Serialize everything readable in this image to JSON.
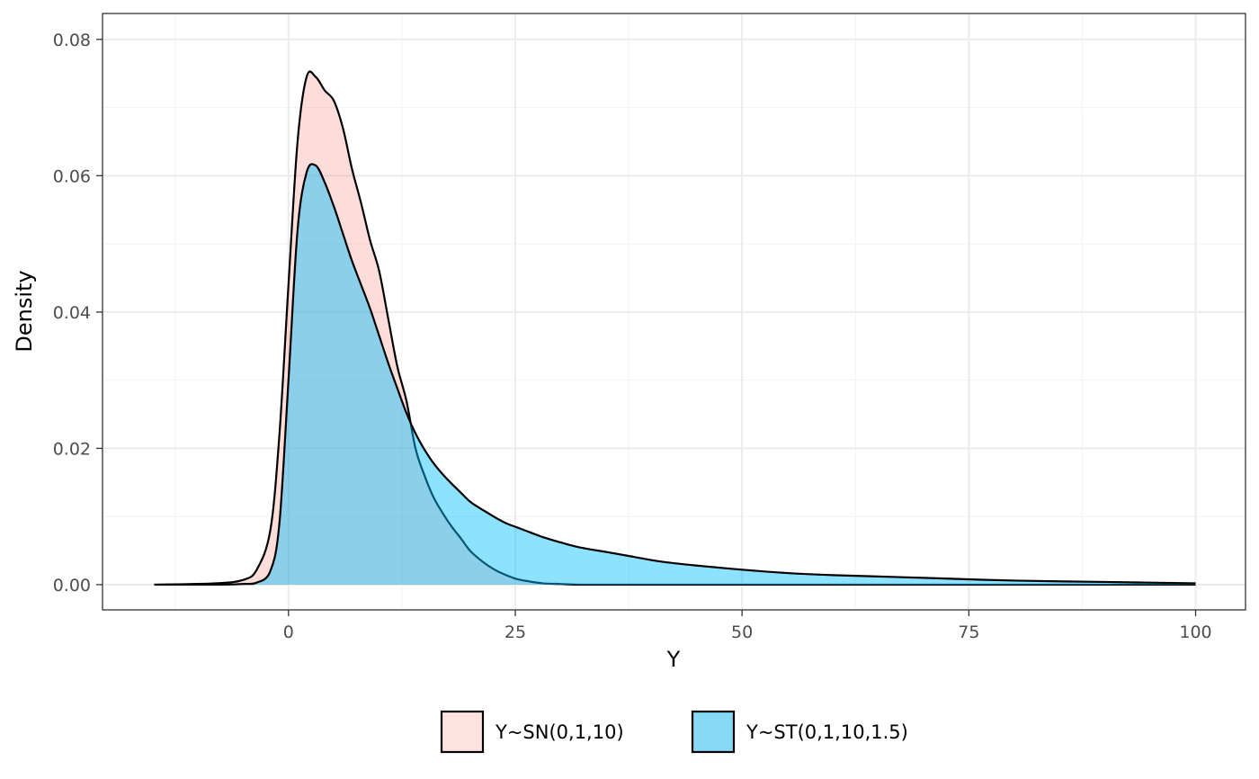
{
  "chart_data": {
    "type": "area",
    "xlabel": "Y",
    "ylabel": "Density",
    "xlim": [
      -20.5,
      105.5
    ],
    "ylim": [
      -0.0037,
      0.0838
    ],
    "xticks": [
      0,
      25,
      50,
      75,
      100
    ],
    "xtick_labels": [
      "0",
      "25",
      "50",
      "75",
      "100"
    ],
    "yticks": [
      0,
      0.02,
      0.04,
      0.06,
      0.08
    ],
    "ytick_labels": [
      "0.00",
      "0.02",
      "0.04",
      "0.06",
      "0.08"
    ],
    "grid": true,
    "legend_position": "bottom",
    "series": [
      {
        "name": "Y~SN(0,1,10)",
        "fill": "#F8766D",
        "legend_fill": "#FDE2E0",
        "opacity": 0.25,
        "x": [
          -14.8,
          -8,
          -5,
          -3.5,
          -2,
          -1,
          0,
          1,
          2,
          3,
          4,
          5,
          6,
          7,
          8,
          9,
          10,
          11,
          12,
          13,
          14,
          15,
          16,
          17,
          18,
          19,
          20,
          21,
          22,
          23,
          24,
          25,
          26,
          28,
          30,
          32,
          35,
          38,
          41,
          45,
          50,
          55,
          60,
          65,
          70,
          80,
          90,
          100
        ],
        "y": [
          0,
          0.0002,
          0.0007,
          0.0022,
          0.008,
          0.022,
          0.044,
          0.065,
          0.0745,
          0.0745,
          0.0725,
          0.071,
          0.067,
          0.061,
          0.056,
          0.0505,
          0.046,
          0.039,
          0.032,
          0.027,
          0.02,
          0.016,
          0.0128,
          0.0105,
          0.0085,
          0.0068,
          0.005,
          0.0038,
          0.0028,
          0.002,
          0.0014,
          0.0009,
          0.0006,
          0.0002,
          0.0001,
          0,
          0,
          0,
          0,
          0,
          0,
          0,
          0,
          0,
          0,
          0,
          0,
          0
        ]
      },
      {
        "name": "Y~ST(0,1,10,1.5)",
        "fill": "#00BFFF",
        "legend_fill": "#87D9F8",
        "opacity": 0.45,
        "x": [
          -14.8,
          -8,
          -5,
          -3.5,
          -2,
          -1,
          0,
          1,
          2,
          3,
          4,
          5,
          6,
          7,
          8,
          9,
          10,
          11,
          12,
          13,
          14,
          15,
          16,
          17,
          18,
          19,
          20,
          21,
          22,
          23,
          24,
          25,
          26,
          28,
          30,
          32,
          35,
          38,
          41,
          45,
          50,
          55,
          60,
          65,
          70,
          80,
          90,
          100
        ],
        "y": [
          0,
          0,
          0.0001,
          0.0003,
          0.002,
          0.009,
          0.03,
          0.052,
          0.0605,
          0.0615,
          0.059,
          0.0555,
          0.0515,
          0.0475,
          0.044,
          0.0405,
          0.0365,
          0.0325,
          0.0288,
          0.0252,
          0.0222,
          0.0198,
          0.0178,
          0.0162,
          0.0148,
          0.0135,
          0.0122,
          0.0113,
          0.0105,
          0.0097,
          0.009,
          0.0085,
          0.008,
          0.007,
          0.0062,
          0.0055,
          0.0048,
          0.0041,
          0.0034,
          0.0028,
          0.0022,
          0.0017,
          0.0014,
          0.0012,
          0.001,
          0.0006,
          0.0004,
          0.0002
        ]
      }
    ]
  }
}
